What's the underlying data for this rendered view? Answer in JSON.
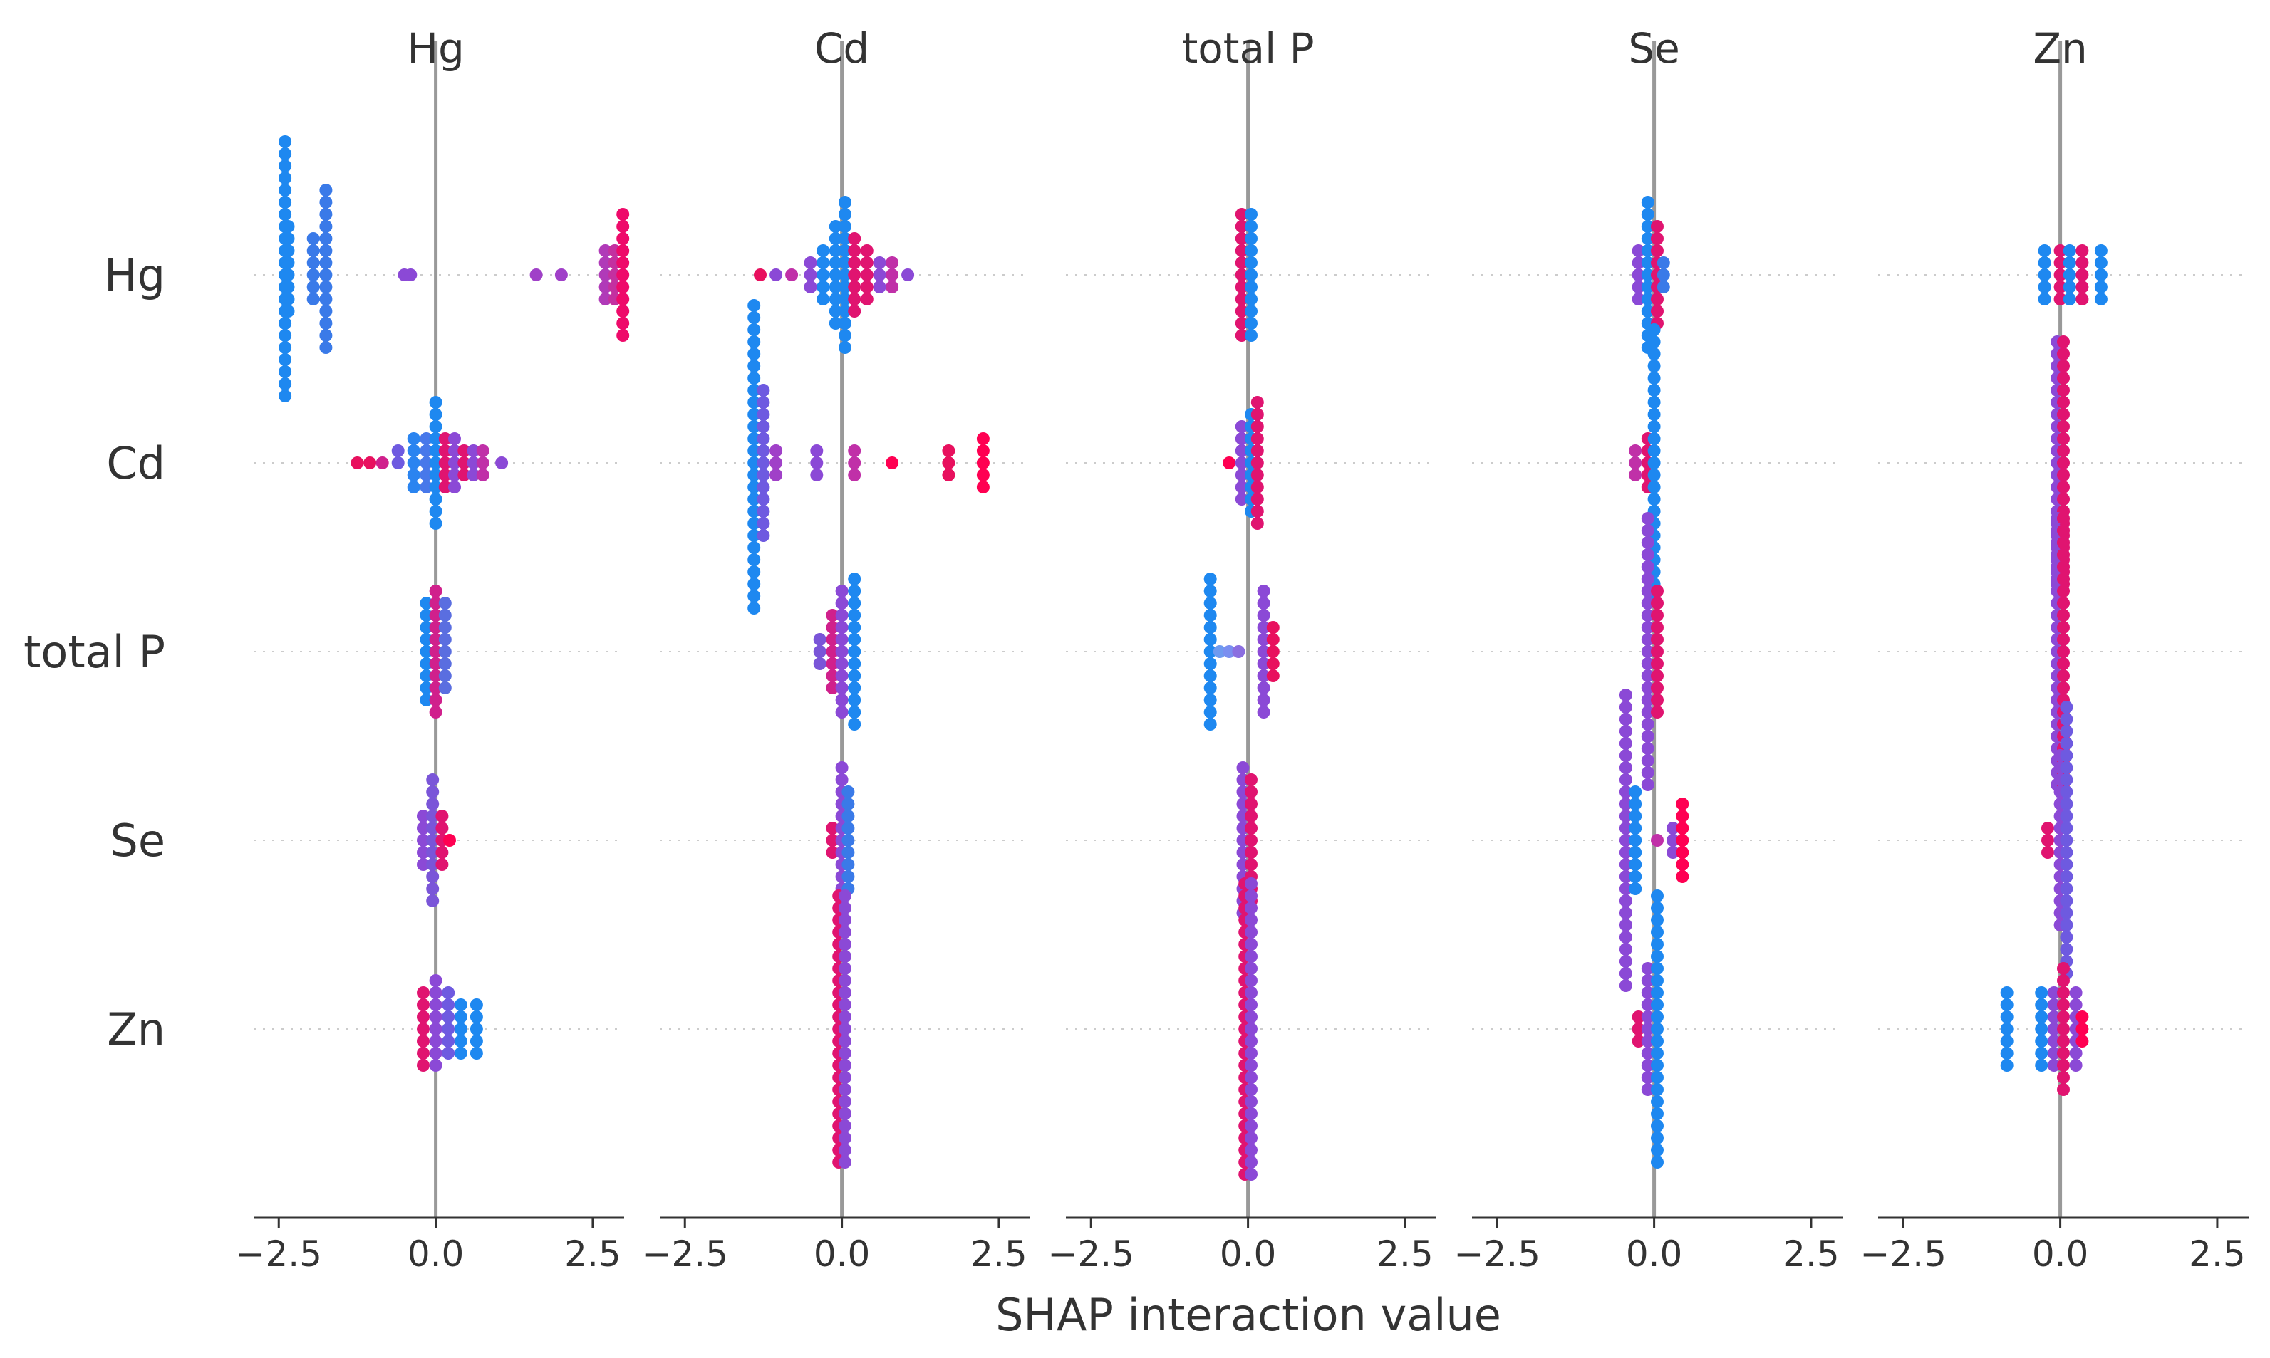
{
  "chart_data": {
    "type": "scatter",
    "title": "",
    "xlabel": "SHAP interaction value",
    "features": [
      "Hg",
      "Cd",
      "total P",
      "Se",
      "Zn"
    ],
    "xlim": [
      -2.9,
      3.0
    ],
    "xticks": [
      -2.5,
      0.0,
      2.5
    ],
    "xtick_labels": [
      "−2.5",
      "0.0",
      "2.5"
    ],
    "grid": true,
    "colormap": [
      "#008bfb",
      "#8b49d6",
      "#ff0052"
    ],
    "panels": [
      {
        "column": "Hg",
        "rows": [
          {
            "row": "Hg",
            "points": [
              {
                "x": -2.4,
                "n": 22,
                "color": "#1e88f0"
              },
              {
                "x": -2.35,
                "n": 8,
                "color": "#1e88f0"
              },
              {
                "x": -1.95,
                "n": 6,
                "color": "#3a7ae8"
              },
              {
                "x": -1.75,
                "n": 14,
                "color": "#3a7ae8"
              },
              {
                "x": -0.5,
                "n": 1,
                "color": "#8b49d6"
              },
              {
                "x": -0.4,
                "n": 1,
                "color": "#8b49d6"
              },
              {
                "x": 1.6,
                "n": 1,
                "color": "#a040c8"
              },
              {
                "x": 2.0,
                "n": 1,
                "color": "#a040c8"
              },
              {
                "x": 2.7,
                "n": 5,
                "color": "#b03ab8"
              },
              {
                "x": 2.85,
                "n": 5,
                "color": "#c430a0"
              },
              {
                "x": 2.98,
                "n": 11,
                "color": "#ee0a6a"
              }
            ]
          },
          {
            "row": "Cd",
            "points": [
              {
                "x": -1.25,
                "n": 1,
                "color": "#e8105e"
              },
              {
                "x": -1.05,
                "n": 1,
                "color": "#e8105e"
              },
              {
                "x": -0.85,
                "n": 1,
                "color": "#d0208c"
              },
              {
                "x": -0.6,
                "n": 2,
                "color": "#6e5ae0"
              },
              {
                "x": -0.35,
                "n": 5,
                "color": "#2a84f0"
              },
              {
                "x": -0.15,
                "n": 5,
                "color": "#4878ea"
              },
              {
                "x": 0.0,
                "n": 11,
                "color": "#1e88f0"
              },
              {
                "x": 0.15,
                "n": 5,
                "color": "#e01470"
              },
              {
                "x": 0.3,
                "n": 5,
                "color": "#8b49d6"
              },
              {
                "x": 0.45,
                "n": 3,
                "color": "#e01470"
              },
              {
                "x": 0.6,
                "n": 3,
                "color": "#8b49d6"
              },
              {
                "x": 0.75,
                "n": 3,
                "color": "#c030a8"
              },
              {
                "x": 1.05,
                "n": 1,
                "color": "#8b49d6"
              }
            ]
          },
          {
            "row": "total P",
            "points": [
              {
                "x": -0.15,
                "n": 9,
                "color": "#1e88f0"
              },
              {
                "x": 0.0,
                "n": 11,
                "color": "#d0208c"
              },
              {
                "x": 0.15,
                "n": 8,
                "color": "#5a6ee0"
              }
            ]
          },
          {
            "row": "Se",
            "points": [
              {
                "x": -0.2,
                "n": 5,
                "color": "#8b49d6"
              },
              {
                "x": -0.05,
                "n": 11,
                "color": "#7a55d8"
              },
              {
                "x": 0.1,
                "n": 5,
                "color": "#e01470"
              },
              {
                "x": 0.22,
                "n": 1,
                "color": "#ff0052"
              }
            ]
          },
          {
            "row": "Zn",
            "points": [
              {
                "x": -0.2,
                "n": 7,
                "color": "#e01470"
              },
              {
                "x": 0.0,
                "n": 8,
                "color": "#8b49d6"
              },
              {
                "x": 0.2,
                "n": 6,
                "color": "#6e5ae0"
              },
              {
                "x": 0.4,
                "n": 5,
                "color": "#1e88f0"
              },
              {
                "x": 0.65,
                "n": 5,
                "color": "#1e88f0"
              }
            ]
          }
        ]
      },
      {
        "column": "Cd",
        "rows": [
          {
            "row": "Hg",
            "points": [
              {
                "x": -1.3,
                "n": 1,
                "color": "#e8105e"
              },
              {
                "x": -1.05,
                "n": 1,
                "color": "#8b49d6"
              },
              {
                "x": -0.8,
                "n": 1,
                "color": "#c030a8"
              },
              {
                "x": -0.5,
                "n": 3,
                "color": "#8b49d6"
              },
              {
                "x": -0.3,
                "n": 5,
                "color": "#1e88f0"
              },
              {
                "x": -0.1,
                "n": 9,
                "color": "#1e88f0"
              },
              {
                "x": 0.05,
                "n": 13,
                "color": "#1e88f0"
              },
              {
                "x": 0.2,
                "n": 7,
                "color": "#e01470"
              },
              {
                "x": 0.4,
                "n": 5,
                "color": "#e01470"
              },
              {
                "x": 0.6,
                "n": 3,
                "color": "#8b49d6"
              },
              {
                "x": 0.8,
                "n": 3,
                "color": "#c030a8"
              },
              {
                "x": 1.05,
                "n": 1,
                "color": "#8b49d6"
              }
            ]
          },
          {
            "row": "Cd",
            "points": [
              {
                "x": -1.4,
                "n": 26,
                "color": "#1e88f0"
              },
              {
                "x": -1.25,
                "n": 13,
                "color": "#6e5ae0"
              },
              {
                "x": -1.05,
                "n": 3,
                "color": "#a040c8"
              },
              {
                "x": -0.4,
                "n": 3,
                "color": "#8b49d6"
              },
              {
                "x": 0.2,
                "n": 3,
                "color": "#c030a8"
              },
              {
                "x": 0.8,
                "n": 1,
                "color": "#ff0052"
              },
              {
                "x": 1.7,
                "n": 3,
                "color": "#e8105e"
              },
              {
                "x": 2.25,
                "n": 5,
                "color": "#ff0052"
              }
            ]
          },
          {
            "row": "total P",
            "points": [
              {
                "x": -0.35,
                "n": 3,
                "color": "#7a55d8"
              },
              {
                "x": -0.15,
                "n": 7,
                "color": "#d0208c"
              },
              {
                "x": 0.0,
                "n": 11,
                "color": "#8b49d6"
              },
              {
                "x": 0.2,
                "n": 13,
                "color": "#1e88f0"
              }
            ]
          },
          {
            "row": "Se",
            "points": [
              {
                "x": -0.15,
                "n": 3,
                "color": "#e01470"
              },
              {
                "x": 0.0,
                "n": 13,
                "color": "#8b49d6"
              },
              {
                "x": 0.1,
                "n": 9,
                "color": "#3a7ae8"
              }
            ]
          },
          {
            "row": "Zn",
            "points": [
              {
                "x": -0.05,
                "n": 23,
                "color": "#e01470"
              },
              {
                "x": 0.05,
                "n": 23,
                "color": "#8b49d6"
              }
            ]
          }
        ]
      },
      {
        "column": "total P",
        "rows": [
          {
            "row": "Hg",
            "points": [
              {
                "x": -0.1,
                "n": 11,
                "color": "#e01470"
              },
              {
                "x": 0.05,
                "n": 11,
                "color": "#1e88f0"
              }
            ]
          },
          {
            "row": "Cd",
            "points": [
              {
                "x": -0.3,
                "n": 1,
                "color": "#ff0052"
              },
              {
                "x": -0.1,
                "n": 7,
                "color": "#8b49d6"
              },
              {
                "x": 0.05,
                "n": 9,
                "color": "#1e88f0"
              },
              {
                "x": 0.15,
                "n": 11,
                "color": "#e01470"
              }
            ]
          },
          {
            "row": "total P",
            "points": [
              {
                "x": -0.6,
                "n": 13,
                "color": "#1e88f0"
              },
              {
                "x": -0.45,
                "n": 1,
                "color": "#6e9af0"
              },
              {
                "x": -0.3,
                "n": 1,
                "color": "#7a8ef0"
              },
              {
                "x": -0.15,
                "n": 1,
                "color": "#8b6ee0"
              },
              {
                "x": 0.25,
                "n": 11,
                "color": "#8b49d6"
              },
              {
                "x": 0.4,
                "n": 5,
                "color": "#e8105e"
              }
            ]
          },
          {
            "row": "Se",
            "points": [
              {
                "x": -0.08,
                "n": 13,
                "color": "#8b49d6"
              },
              {
                "x": 0.05,
                "n": 11,
                "color": "#e01470"
              }
            ]
          },
          {
            "row": "Zn",
            "points": [
              {
                "x": -0.05,
                "n": 25,
                "color": "#e01470"
              },
              {
                "x": 0.05,
                "n": 25,
                "color": "#8b49d6"
              }
            ]
          }
        ]
      },
      {
        "column": "Se",
        "rows": [
          {
            "row": "Hg",
            "points": [
              {
                "x": -0.25,
                "n": 5,
                "color": "#8b49d6"
              },
              {
                "x": -0.1,
                "n": 13,
                "color": "#1e88f0"
              },
              {
                "x": 0.05,
                "n": 9,
                "color": "#e01470"
              },
              {
                "x": 0.15,
                "n": 3,
                "color": "#3a7ae8"
              }
            ]
          },
          {
            "row": "Cd",
            "points": [
              {
                "x": -0.3,
                "n": 3,
                "color": "#c030a8"
              },
              {
                "x": -0.1,
                "n": 5,
                "color": "#e01470"
              },
              {
                "x": 0.0,
                "n": 23,
                "color": "#1e88f0"
              }
            ]
          },
          {
            "row": "total P",
            "points": [
              {
                "x": -0.1,
                "n": 23,
                "color": "#8b49d6"
              },
              {
                "x": 0.05,
                "n": 11,
                "color": "#e01470"
              }
            ]
          },
          {
            "row": "Se",
            "points": [
              {
                "x": -0.45,
                "n": 25,
                "color": "#8b49d6"
              },
              {
                "x": -0.3,
                "n": 9,
                "color": "#1e88f0"
              },
              {
                "x": 0.05,
                "n": 1,
                "color": "#c030a8"
              },
              {
                "x": 0.3,
                "n": 3,
                "color": "#8b49d6"
              },
              {
                "x": 0.45,
                "n": 7,
                "color": "#ff0052"
              }
            ]
          },
          {
            "row": "Zn",
            "points": [
              {
                "x": -0.25,
                "n": 3,
                "color": "#e01470"
              },
              {
                "x": -0.1,
                "n": 11,
                "color": "#8b49d6"
              },
              {
                "x": 0.05,
                "n": 23,
                "color": "#1e88f0"
              }
            ]
          }
        ]
      },
      {
        "column": "Zn",
        "rows": [
          {
            "row": "Hg",
            "points": [
              {
                "x": -0.25,
                "n": 5,
                "color": "#1e88f0"
              },
              {
                "x": 0.0,
                "n": 5,
                "color": "#e01470"
              },
              {
                "x": 0.15,
                "n": 5,
                "color": "#1e88f0"
              },
              {
                "x": 0.35,
                "n": 5,
                "color": "#e01470"
              },
              {
                "x": 0.65,
                "n": 5,
                "color": "#1e88f0"
              }
            ]
          },
          {
            "row": "Cd",
            "points": [
              {
                "x": -0.05,
                "n": 21,
                "color": "#8b49d6"
              },
              {
                "x": 0.05,
                "n": 21,
                "color": "#e01470"
              }
            ]
          },
          {
            "row": "total P",
            "points": [
              {
                "x": -0.05,
                "n": 23,
                "color": "#8b49d6"
              },
              {
                "x": 0.05,
                "n": 23,
                "color": "#e01470"
              }
            ]
          },
          {
            "row": "Se",
            "points": [
              {
                "x": -0.2,
                "n": 3,
                "color": "#e01470"
              },
              {
                "x": 0.0,
                "n": 15,
                "color": "#8b49d6"
              },
              {
                "x": 0.1,
                "n": 23,
                "color": "#6e5ae0"
              }
            ]
          },
          {
            "row": "Zn",
            "points": [
              {
                "x": -0.85,
                "n": 7,
                "color": "#1e88f0"
              },
              {
                "x": -0.3,
                "n": 7,
                "color": "#1e88f0"
              },
              {
                "x": -0.1,
                "n": 7,
                "color": "#8b49d6"
              },
              {
                "x": 0.05,
                "n": 11,
                "color": "#e01470"
              },
              {
                "x": 0.25,
                "n": 7,
                "color": "#8b49d6"
              },
              {
                "x": 0.35,
                "n": 3,
                "color": "#ff0052"
              }
            ]
          }
        ]
      }
    ]
  }
}
